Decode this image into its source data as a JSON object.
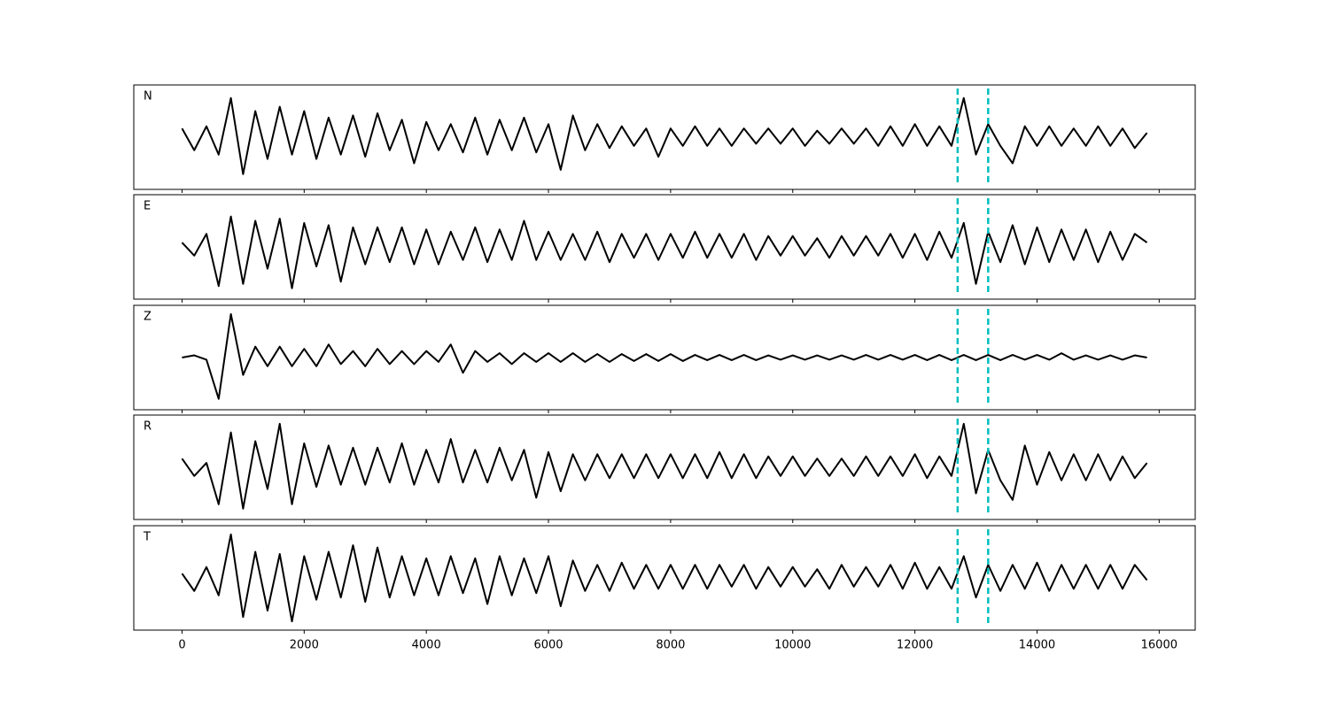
{
  "chart_data": [
    {
      "type": "line",
      "label": "N",
      "color": "#000000",
      "vlines": [
        12700,
        13200
      ],
      "vline_color": "#00bfbf",
      "xlim": [
        -790,
        16590
      ],
      "ylim": [
        -1.2,
        1.2
      ],
      "x": [
        0,
        200,
        400,
        600,
        800,
        1000,
        1200,
        1400,
        1600,
        1800,
        2000,
        2200,
        2400,
        2600,
        2800,
        3000,
        3200,
        3400,
        3600,
        3800,
        4000,
        4200,
        4400,
        4600,
        4800,
        5000,
        5200,
        5400,
        5600,
        5800,
        6000,
        6200,
        6400,
        6600,
        6800,
        7000,
        7200,
        7400,
        7600,
        7800,
        8000,
        8200,
        8400,
        8600,
        8800,
        9000,
        9200,
        9400,
        9600,
        9800,
        10000,
        10200,
        10400,
        10600,
        10800,
        11000,
        11200,
        11400,
        11600,
        11800,
        12000,
        12200,
        12400,
        12600,
        12800,
        13000,
        13200,
        13400,
        13600,
        13800,
        14000,
        14200,
        14400,
        14600,
        14800,
        15000,
        15200,
        15400,
        15600,
        15800
      ],
      "values": [
        0.2,
        -0.3,
        0.25,
        -0.4,
        0.9,
        -0.85,
        0.6,
        -0.5,
        0.7,
        -0.4,
        0.6,
        -0.5,
        0.45,
        -0.4,
        0.5,
        -0.45,
        0.55,
        -0.3,
        0.4,
        -0.6,
        0.35,
        -0.3,
        0.3,
        -0.35,
        0.45,
        -0.4,
        0.4,
        -0.3,
        0.45,
        -0.35,
        0.3,
        -0.75,
        0.5,
        -0.3,
        0.3,
        -0.25,
        0.25,
        -0.2,
        0.2,
        -0.45,
        0.2,
        -0.2,
        0.25,
        -0.2,
        0.2,
        -0.2,
        0.2,
        -0.15,
        0.2,
        -0.15,
        0.2,
        -0.2,
        0.15,
        -0.15,
        0.2,
        -0.15,
        0.2,
        -0.2,
        0.25,
        -0.2,
        0.3,
        -0.2,
        0.25,
        -0.2,
        0.9,
        -0.4,
        0.3,
        -0.2,
        -0.6,
        0.25,
        -0.2,
        0.25,
        -0.2,
        0.2,
        -0.2,
        0.25,
        -0.2,
        0.2,
        -0.25,
        0.1
      ]
    },
    {
      "type": "line",
      "label": "E",
      "color": "#000000",
      "vlines": [
        12700,
        13200
      ],
      "vline_color": "#00bfbf",
      "xlim": [
        -790,
        16590
      ],
      "ylim": [
        -1.2,
        1.2
      ],
      "x": [
        0,
        200,
        400,
        600,
        800,
        1000,
        1200,
        1400,
        1600,
        1800,
        2000,
        2200,
        2400,
        2600,
        2800,
        3000,
        3200,
        3400,
        3600,
        3800,
        4000,
        4200,
        4400,
        4600,
        4800,
        5000,
        5200,
        5400,
        5600,
        5800,
        6000,
        6200,
        6400,
        6600,
        6800,
        7000,
        7200,
        7400,
        7600,
        7800,
        8000,
        8200,
        8400,
        8600,
        8800,
        9000,
        9200,
        9400,
        9600,
        9800,
        10000,
        10200,
        10400,
        10600,
        10800,
        11000,
        11200,
        11400,
        11600,
        11800,
        12000,
        12200,
        12400,
        12600,
        12800,
        13000,
        13200,
        13400,
        13600,
        13800,
        14000,
        14200,
        14400,
        14600,
        14800,
        15000,
        15200,
        15400,
        15600,
        15800
      ],
      "values": [
        0.1,
        -0.2,
        0.3,
        -0.9,
        0.7,
        -0.85,
        0.6,
        -0.5,
        0.65,
        -0.95,
        0.55,
        -0.45,
        0.5,
        -0.8,
        0.45,
        -0.4,
        0.45,
        -0.35,
        0.45,
        -0.4,
        0.4,
        -0.4,
        0.35,
        -0.3,
        0.45,
        -0.35,
        0.4,
        -0.3,
        0.6,
        -0.3,
        0.35,
        -0.3,
        0.3,
        -0.3,
        0.35,
        -0.35,
        0.3,
        -0.25,
        0.3,
        -0.3,
        0.3,
        -0.25,
        0.35,
        -0.25,
        0.3,
        -0.25,
        0.3,
        -0.3,
        0.25,
        -0.2,
        0.25,
        -0.2,
        0.2,
        -0.25,
        0.25,
        -0.2,
        0.25,
        -0.2,
        0.3,
        -0.25,
        0.3,
        -0.3,
        0.35,
        -0.25,
        0.55,
        -0.85,
        0.35,
        -0.35,
        0.5,
        -0.4,
        0.45,
        -0.35,
        0.4,
        -0.3,
        0.4,
        -0.35,
        0.35,
        -0.3,
        0.3,
        0.1
      ]
    },
    {
      "type": "line",
      "label": "Z",
      "color": "#000000",
      "vlines": [
        12700,
        13200
      ],
      "vline_color": "#00bfbf",
      "xlim": [
        -790,
        16590
      ],
      "ylim": [
        -1.2,
        1.2
      ],
      "x": [
        0,
        200,
        400,
        600,
        800,
        1000,
        1200,
        1400,
        1600,
        1800,
        2000,
        2200,
        2400,
        2600,
        2800,
        3000,
        3200,
        3400,
        3600,
        3800,
        4000,
        4200,
        4400,
        4600,
        4800,
        5000,
        5200,
        5400,
        5600,
        5800,
        6000,
        6200,
        6400,
        6600,
        6800,
        7000,
        7200,
        7400,
        7600,
        7800,
        8000,
        8200,
        8400,
        8600,
        8800,
        9000,
        9200,
        9400,
        9600,
        9800,
        10000,
        10200,
        10400,
        10600,
        10800,
        11000,
        11200,
        11400,
        11600,
        11800,
        12000,
        12200,
        12400,
        12600,
        12800,
        13000,
        13200,
        13400,
        13600,
        13800,
        14000,
        14200,
        14400,
        14600,
        14800,
        15000,
        15200,
        15400,
        15600,
        15800
      ],
      "values": [
        0.0,
        0.05,
        -0.05,
        -0.95,
        1.0,
        -0.4,
        0.25,
        -0.2,
        0.25,
        -0.2,
        0.2,
        -0.2,
        0.3,
        -0.15,
        0.15,
        -0.2,
        0.2,
        -0.15,
        0.15,
        -0.15,
        0.15,
        -0.1,
        0.3,
        -0.35,
        0.15,
        -0.1,
        0.1,
        -0.15,
        0.1,
        -0.1,
        0.1,
        -0.1,
        0.1,
        -0.1,
        0.08,
        -0.1,
        0.08,
        -0.08,
        0.08,
        -0.08,
        0.08,
        -0.08,
        0.06,
        -0.06,
        0.06,
        -0.06,
        0.06,
        -0.06,
        0.05,
        -0.05,
        0.05,
        -0.05,
        0.05,
        -0.05,
        0.05,
        -0.05,
        0.06,
        -0.05,
        0.06,
        -0.05,
        0.06,
        -0.06,
        0.06,
        -0.06,
        0.06,
        -0.06,
        0.06,
        -0.06,
        0.06,
        -0.05,
        0.06,
        -0.05,
        0.1,
        -0.05,
        0.05,
        -0.05,
        0.05,
        -0.05,
        0.05,
        0.0
      ]
    },
    {
      "type": "line",
      "label": "R",
      "color": "#000000",
      "vlines": [
        12700,
        13200
      ],
      "vline_color": "#00bfbf",
      "xlim": [
        -790,
        16590
      ],
      "ylim": [
        -1.2,
        1.2
      ],
      "x": [
        0,
        200,
        400,
        600,
        800,
        1000,
        1200,
        1400,
        1600,
        1800,
        2000,
        2200,
        2400,
        2600,
        2800,
        3000,
        3200,
        3400,
        3600,
        3800,
        4000,
        4200,
        4400,
        4600,
        4800,
        5000,
        5200,
        5400,
        5600,
        5800,
        6000,
        6200,
        6400,
        6600,
        6800,
        7000,
        7200,
        7400,
        7600,
        7800,
        8000,
        8200,
        8400,
        8600,
        8800,
        9000,
        9200,
        9400,
        9600,
        9800,
        10000,
        10200,
        10400,
        10600,
        10800,
        11000,
        11200,
        11400,
        11600,
        11800,
        12000,
        12200,
        12400,
        12600,
        12800,
        13000,
        13200,
        13400,
        13600,
        13800,
        14000,
        14200,
        14400,
        14600,
        14800,
        15000,
        15200,
        15400,
        15600,
        15800
      ],
      "values": [
        0.2,
        -0.2,
        0.1,
        -0.85,
        0.8,
        -0.95,
        0.6,
        -0.5,
        1.0,
        -0.85,
        0.55,
        -0.45,
        0.5,
        -0.4,
        0.45,
        -0.4,
        0.45,
        -0.35,
        0.55,
        -0.4,
        0.4,
        -0.35,
        0.65,
        -0.35,
        0.4,
        -0.35,
        0.45,
        -0.3,
        0.4,
        -0.7,
        0.35,
        -0.55,
        0.3,
        -0.3,
        0.3,
        -0.25,
        0.3,
        -0.25,
        0.3,
        -0.25,
        0.3,
        -0.25,
        0.3,
        -0.25,
        0.35,
        -0.25,
        0.3,
        -0.25,
        0.25,
        -0.2,
        0.25,
        -0.2,
        0.2,
        -0.2,
        0.2,
        -0.2,
        0.25,
        -0.2,
        0.25,
        -0.2,
        0.3,
        -0.25,
        0.25,
        -0.2,
        1.0,
        -0.6,
        0.4,
        -0.3,
        -0.75,
        0.5,
        -0.4,
        0.35,
        -0.3,
        0.3,
        -0.3,
        0.3,
        -0.3,
        0.25,
        -0.25,
        0.1
      ]
    },
    {
      "type": "line",
      "label": "T",
      "color": "#000000",
      "vlines": [
        12700,
        13200
      ],
      "vline_color": "#00bfbf",
      "xlim": [
        -790,
        16590
      ],
      "ylim": [
        -1.2,
        1.2
      ],
      "xticks": [
        0,
        2000,
        4000,
        6000,
        8000,
        10000,
        12000,
        14000,
        16000
      ],
      "x": [
        0,
        200,
        400,
        600,
        800,
        1000,
        1200,
        1400,
        1600,
        1800,
        2000,
        2200,
        2400,
        2600,
        2800,
        3000,
        3200,
        3400,
        3600,
        3800,
        4000,
        4200,
        4400,
        4600,
        4800,
        5000,
        5200,
        5400,
        5600,
        5800,
        6000,
        6200,
        6400,
        6600,
        6800,
        7000,
        7200,
        7400,
        7600,
        7800,
        8000,
        8200,
        8400,
        8600,
        8800,
        9000,
        9200,
        9400,
        9600,
        9800,
        10000,
        10200,
        10400,
        10600,
        10800,
        11000,
        11200,
        11400,
        11600,
        11800,
        12000,
        12200,
        12400,
        12600,
        12800,
        13000,
        13200,
        13400,
        13600,
        13800,
        14000,
        14200,
        14400,
        14600,
        14800,
        15000,
        15200,
        15400,
        15600,
        15800
      ],
      "values": [
        0.1,
        -0.3,
        0.25,
        -0.4,
        1.0,
        -0.9,
        0.6,
        -0.75,
        0.55,
        -1.0,
        0.5,
        -0.5,
        0.6,
        -0.45,
        0.75,
        -0.55,
        0.7,
        -0.45,
        0.5,
        -0.4,
        0.45,
        -0.4,
        0.5,
        -0.35,
        0.45,
        -0.6,
        0.5,
        -0.4,
        0.45,
        -0.35,
        0.5,
        -0.65,
        0.4,
        -0.3,
        0.3,
        -0.3,
        0.35,
        -0.25,
        0.3,
        -0.25,
        0.3,
        -0.25,
        0.3,
        -0.25,
        0.3,
        -0.2,
        0.3,
        -0.25,
        0.25,
        -0.2,
        0.25,
        -0.2,
        0.2,
        -0.25,
        0.3,
        -0.2,
        0.25,
        -0.2,
        0.3,
        -0.25,
        0.35,
        -0.25,
        0.25,
        -0.25,
        0.5,
        -0.45,
        0.3,
        -0.3,
        0.3,
        -0.25,
        0.35,
        -0.3,
        0.3,
        -0.25,
        0.3,
        -0.25,
        0.3,
        -0.25,
        0.3,
        -0.05
      ]
    }
  ]
}
